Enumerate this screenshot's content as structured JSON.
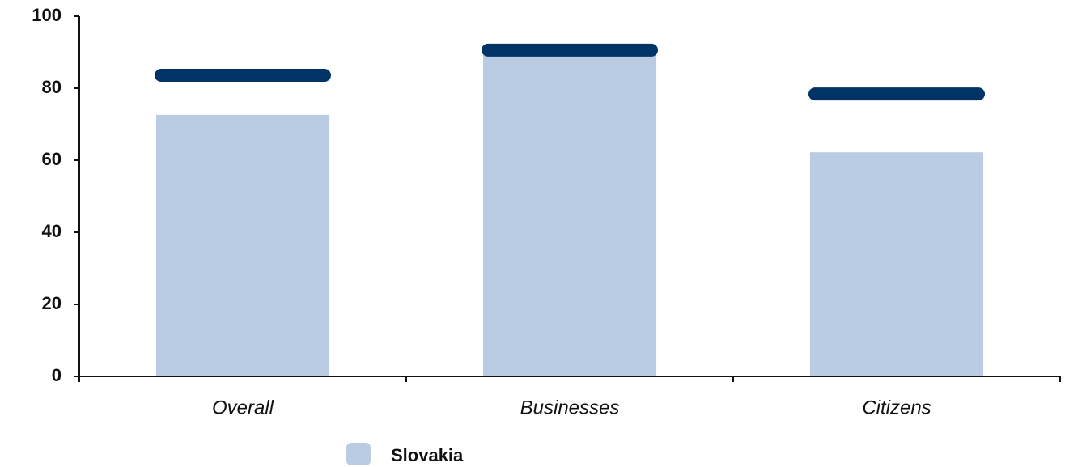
{
  "chart_data": {
    "type": "bar",
    "categories": [
      "Overall",
      "Businesses",
      "Citizens"
    ],
    "series": [
      {
        "name": "Slovakia",
        "color": "#b9cce4",
        "values": [
          72.6,
          89.2,
          62.2
        ]
      },
      {
        "color": "#003366",
        "marker": "line",
        "values": [
          83.6,
          90.6,
          78.4
        ]
      }
    ],
    "ylim": [
      0,
      100
    ],
    "yticks": [
      0,
      20,
      40,
      60,
      80,
      100
    ],
    "grid": false,
    "legend": "bottom"
  }
}
